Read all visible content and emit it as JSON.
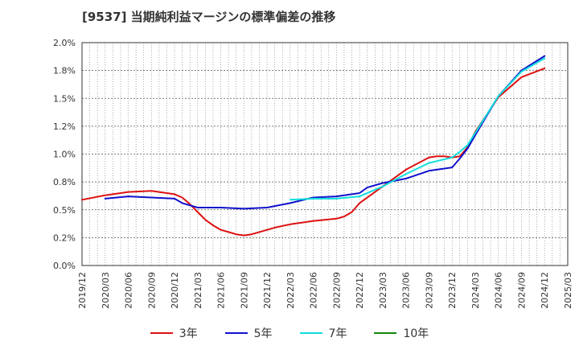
{
  "chart_data": {
    "type": "line",
    "title": "[9537]  当期純利益マージンの標準偏差の推移",
    "x_labels": [
      "2019/12",
      "2020/03",
      "2020/06",
      "2020/09",
      "2020/12",
      "2021/03",
      "2021/06",
      "2021/09",
      "2021/12",
      "2022/03",
      "2022/06",
      "2022/09",
      "2022/12",
      "2023/03",
      "2023/06",
      "2023/09",
      "2023/12",
      "2024/03",
      "2024/06",
      "2024/09",
      "2024/12",
      "2025/03"
    ],
    "y_ticks": [
      "0.0%",
      "0.2%",
      "0.5%",
      "0.8%",
      "1.0%",
      "1.2%",
      "1.5%",
      "1.8%",
      "2.0%"
    ],
    "ylim": [
      0,
      2.0
    ],
    "grid": true,
    "legend_position": "bottom",
    "series": [
      {
        "name": "3年",
        "color": "#dd1111",
        "x": [
          "2019/12",
          "2020/03",
          "2020/06",
          "2020/09",
          "2020/12",
          "2021/01",
          "2021/02",
          "2021/03",
          "2021/04",
          "2021/05",
          "2021/06",
          "2021/07",
          "2021/08",
          "2021/09",
          "2021/10",
          "2021/11",
          "2021/12",
          "2022/01",
          "2022/03",
          "2022/06",
          "2022/09",
          "2022/10",
          "2022/11",
          "2022/12",
          "2023/03",
          "2023/06",
          "2023/09",
          "2023/10",
          "2023/11",
          "2023/12",
          "2024/01",
          "2024/02",
          "2024/03",
          "2024/06",
          "2024/09",
          "2024/12"
        ],
        "y": [
          0.59,
          0.63,
          0.66,
          0.67,
          0.64,
          0.61,
          0.55,
          0.48,
          0.41,
          0.36,
          0.32,
          0.3,
          0.28,
          0.27,
          0.28,
          0.3,
          0.32,
          0.34,
          0.37,
          0.4,
          0.42,
          0.44,
          0.48,
          0.56,
          0.71,
          0.86,
          0.97,
          0.98,
          0.98,
          0.97,
          0.98,
          1.06,
          1.2,
          1.51,
          1.69,
          1.77
        ]
      },
      {
        "name": "5年",
        "color": "#1111cc",
        "x": [
          "2020/03",
          "2020/06",
          "2020/09",
          "2020/12",
          "2021/01",
          "2021/03",
          "2021/06",
          "2021/09",
          "2021/12",
          "2022/03",
          "2022/06",
          "2022/09",
          "2022/12",
          "2023/01",
          "2023/03",
          "2023/06",
          "2023/09",
          "2023/12",
          "2024/01",
          "2024/02",
          "2024/03",
          "2024/06",
          "2024/09",
          "2024/12"
        ],
        "y": [
          0.6,
          0.62,
          0.61,
          0.6,
          0.56,
          0.52,
          0.52,
          0.51,
          0.52,
          0.56,
          0.61,
          0.62,
          0.65,
          0.7,
          0.74,
          0.78,
          0.85,
          0.88,
          0.96,
          1.05,
          1.17,
          1.52,
          1.75,
          1.88
        ]
      },
      {
        "name": "7年",
        "color": "#11dddd",
        "x": [
          "2022/03",
          "2022/06",
          "2022/09",
          "2022/12",
          "2023/03",
          "2023/06",
          "2023/09",
          "2023/12",
          "2024/01",
          "2024/02",
          "2024/03",
          "2024/06",
          "2024/09",
          "2024/12"
        ],
        "y": [
          0.59,
          0.6,
          0.6,
          0.62,
          0.71,
          0.82,
          0.92,
          0.97,
          1.02,
          1.08,
          1.19,
          1.52,
          1.74,
          1.86
        ]
      },
      {
        "name": "10年",
        "color": "#118811",
        "x": [],
        "y": []
      }
    ]
  }
}
